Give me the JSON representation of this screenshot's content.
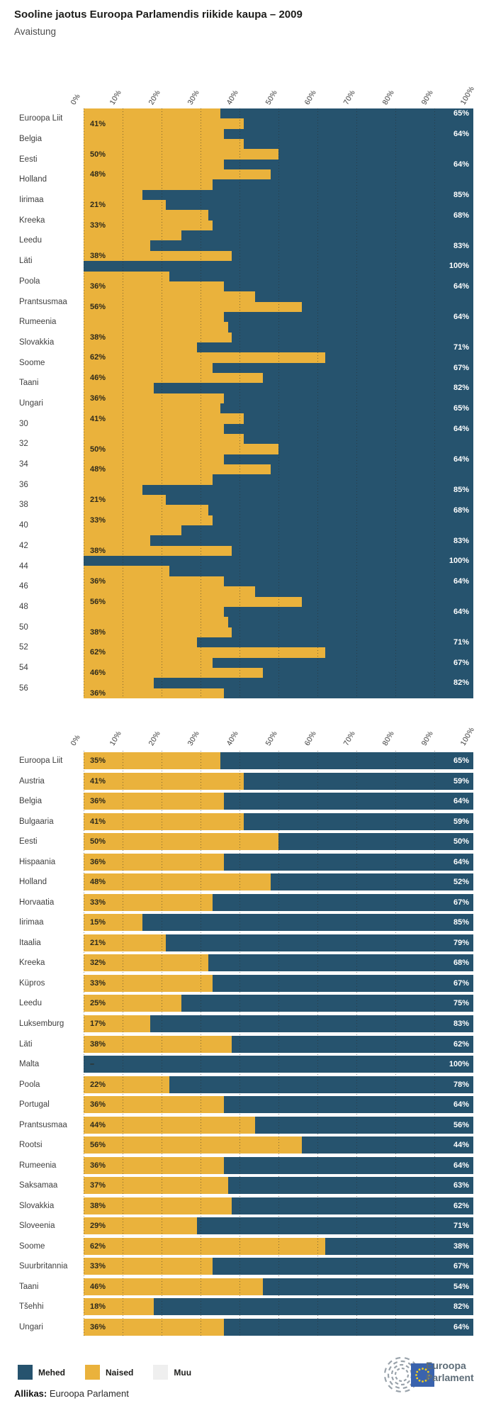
{
  "title": "Sooline jaotus Euroopa Parlamendis riikide kaupa – 2009",
  "subtitle": "Avaistung",
  "colors": {
    "mehed": "#26536e",
    "naised": "#eab23c",
    "muu": "#efefef"
  },
  "axis": {
    "ticks": [
      "0%",
      "10%",
      "20%",
      "30%",
      "40%",
      "50%",
      "60%",
      "70%",
      "80%",
      "90%",
      "100%"
    ],
    "tick_values": [
      0,
      10,
      20,
      30,
      40,
      50,
      60,
      70,
      80,
      90,
      100
    ]
  },
  "legend": [
    {
      "label": "Mehed",
      "color": "#26536e"
    },
    {
      "label": "Naised",
      "color": "#eab23c"
    },
    {
      "label": "Muu",
      "color": "#efefef"
    }
  ],
  "source": {
    "label": "Allikas:",
    "text": " Euroopa Parlament"
  },
  "logo": {
    "line1": "Euroopa",
    "line2": "Parlament"
  },
  "chart_data": [
    {
      "type": "bar",
      "orientation": "horizontal",
      "stacked": true,
      "title": "Avaistung (glitched render: 29 values drawn twice as half-height strips, offset from row labels)",
      "categories": [
        "Euroopa Liit",
        "Belgia",
        "Eesti",
        "Holland",
        "Iirimaa",
        "Kreeka",
        "Leedu",
        "Läti",
        "Poola",
        "Prantsusmaa",
        "Rumeenia",
        "Slovakkia",
        "Soome",
        "Taani",
        "Ungari",
        "30",
        "32",
        "34",
        "36",
        "38",
        "40",
        "42",
        "44",
        "46",
        "48",
        "50",
        "52",
        "54",
        "56"
      ],
      "series": [
        {
          "name": "Naised",
          "values": [
            35,
            41,
            36,
            41,
            50,
            36,
            48,
            33,
            15,
            21,
            32,
            33,
            25,
            17,
            38,
            0,
            22,
            36,
            44,
            56,
            36,
            37,
            38,
            29,
            62,
            33,
            46,
            18,
            36
          ]
        },
        {
          "name": "Mehed",
          "values": [
            65,
            59,
            64,
            59,
            50,
            64,
            52,
            67,
            85,
            79,
            68,
            67,
            75,
            83,
            62,
            100,
            78,
            64,
            56,
            44,
            64,
            63,
            62,
            71,
            38,
            67,
            54,
            82,
            64
          ]
        }
      ],
      "strip_repeat": 2,
      "xlim": [
        0,
        100
      ],
      "value_labels_left": [
        {
          "strip": 2,
          "text": "41%"
        },
        {
          "strip": 5,
          "text": "50%"
        },
        {
          "strip": 7,
          "text": "48%"
        },
        {
          "strip": 10,
          "text": "21%"
        },
        {
          "strip": 12,
          "text": "33%"
        },
        {
          "strip": 15,
          "text": "38%"
        },
        {
          "strip": 18,
          "text": "36%"
        },
        {
          "strip": 20,
          "text": "56%"
        },
        {
          "strip": 23,
          "text": "38%"
        },
        {
          "strip": 25,
          "text": "62%"
        },
        {
          "strip": 27,
          "text": "46%"
        },
        {
          "strip": 29,
          "text": "36%"
        },
        {
          "strip": 31,
          "text": "41%"
        },
        {
          "strip": 34,
          "text": "50%"
        },
        {
          "strip": 36,
          "text": "48%"
        },
        {
          "strip": 39,
          "text": "21%"
        },
        {
          "strip": 41,
          "text": "33%"
        },
        {
          "strip": 44,
          "text": "38%"
        },
        {
          "strip": 47,
          "text": "36%"
        },
        {
          "strip": 49,
          "text": "56%"
        },
        {
          "strip": 52,
          "text": "38%"
        },
        {
          "strip": 54,
          "text": "62%"
        },
        {
          "strip": 56,
          "text": "46%"
        },
        {
          "strip": 58,
          "text": "36%"
        }
      ],
      "value_labels_right": [
        {
          "strip": 1,
          "text": "65%"
        },
        {
          "strip": 3,
          "text": "64%"
        },
        {
          "strip": 6,
          "text": "64%"
        },
        {
          "strip": 9,
          "text": "85%"
        },
        {
          "strip": 11,
          "text": "68%"
        },
        {
          "strip": 14,
          "text": "83%"
        },
        {
          "strip": 16,
          "text": "100%"
        },
        {
          "strip": 18,
          "text": "64%"
        },
        {
          "strip": 21,
          "text": "64%"
        },
        {
          "strip": 24,
          "text": "71%"
        },
        {
          "strip": 26,
          "text": "67%"
        },
        {
          "strip": 28,
          "text": "82%"
        },
        {
          "strip": 30,
          "text": "65%"
        },
        {
          "strip": 32,
          "text": "64%"
        },
        {
          "strip": 35,
          "text": "64%"
        },
        {
          "strip": 38,
          "text": "85%"
        },
        {
          "strip": 40,
          "text": "68%"
        },
        {
          "strip": 43,
          "text": "83%"
        },
        {
          "strip": 45,
          "text": "100%"
        },
        {
          "strip": 47,
          "text": "64%"
        },
        {
          "strip": 50,
          "text": "64%"
        },
        {
          "strip": 53,
          "text": "71%"
        },
        {
          "strip": 55,
          "text": "67%"
        },
        {
          "strip": 57,
          "text": "82%"
        }
      ]
    },
    {
      "type": "bar",
      "orientation": "horizontal",
      "stacked": true,
      "title": "Sooline jaotus Euroopa Parlamendis riikide kaupa – 2009",
      "categories": [
        "Euroopa Liit",
        "Austria",
        "Belgia",
        "Bulgaaria",
        "Eesti",
        "Hispaania",
        "Holland",
        "Horvaatia",
        "Iirimaa",
        "Itaalia",
        "Kreeka",
        "Küpros",
        "Leedu",
        "Luksemburg",
        "Läti",
        "Malta",
        "Poola",
        "Portugal",
        "Prantsusmaa",
        "Rootsi",
        "Rumeenia",
        "Saksamaa",
        "Slovakkia",
        "Sloveenia",
        "Soome",
        "Suurbritannia",
        "Taani",
        "Tšehhi",
        "Ungari"
      ],
      "series": [
        {
          "name": "Naised",
          "values": [
            35,
            41,
            36,
            41,
            50,
            36,
            48,
            33,
            15,
            21,
            32,
            33,
            25,
            17,
            38,
            0,
            22,
            36,
            44,
            56,
            36,
            37,
            38,
            29,
            62,
            33,
            46,
            18,
            36
          ]
        },
        {
          "name": "Mehed",
          "values": [
            65,
            59,
            64,
            59,
            50,
            64,
            52,
            67,
            85,
            79,
            68,
            67,
            75,
            83,
            62,
            100,
            78,
            64,
            56,
            44,
            64,
            63,
            62,
            71,
            38,
            67,
            54,
            82,
            64
          ]
        }
      ],
      "xlim": [
        0,
        100
      ],
      "labels_left": [
        "35%",
        "41%",
        "36%",
        "41%",
        "50%",
        "36%",
        "48%",
        "33%",
        "15%",
        "21%",
        "32%",
        "33%",
        "25%",
        "17%",
        "38%",
        "–",
        "22%",
        "36%",
        "44%",
        "56%",
        "36%",
        "37%",
        "38%",
        "29%",
        "62%",
        "33%",
        "46%",
        "18%",
        "36%"
      ],
      "labels_right": [
        "65%",
        "59%",
        "64%",
        "59%",
        "50%",
        "64%",
        "52%",
        "67%",
        "85%",
        "79%",
        "68%",
        "67%",
        "75%",
        "83%",
        "62%",
        "100%",
        "78%",
        "64%",
        "56%",
        "44%",
        "64%",
        "63%",
        "62%",
        "71%",
        "38%",
        "67%",
        "54%",
        "82%",
        "64%"
      ]
    }
  ]
}
